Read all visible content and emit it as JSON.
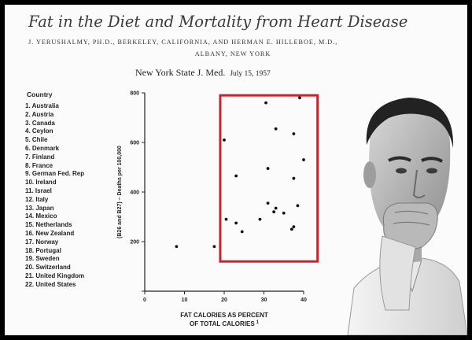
{
  "header": {
    "title": "Fat in the Diet and Mortality from Heart Disease",
    "authors": "J. YERUSHALMY, PH.D., BERKELEY, CALIFORNIA, AND HERMAN E. HILLEBOE, M.D.,",
    "location": "ALBANY, NEW YORK",
    "journal": "New York State J. Med.",
    "date": "July 15, 1957"
  },
  "countries": {
    "heading": "Country",
    "items": [
      "1. Australia",
      "2. Austria",
      "3. Canada",
      "4. Ceylon",
      "5. Chile",
      "6. Denmark",
      "7. Finland",
      "8. France",
      "9. German Fed. Rep",
      "10. Ireland",
      "11. Israel",
      "12. Italy",
      "13. Japan",
      "14. Mexico",
      "15. Netherlands",
      "16. New Zealand",
      "17. Norway",
      "18. Portugal",
      "19. Sweden",
      "20. Switzerland",
      "21. United Kingdom",
      "22. United States"
    ]
  },
  "chart_data": {
    "type": "scatter",
    "xlabel": "FAT CALORIES AS PERCENT",
    "xlabel_2": "OF TOTAL CALORIES",
    "xlabel_superscript": "1",
    "ylabel": "(B26 and B27) – Deaths per 100,000",
    "xlim": [
      0,
      40
    ],
    "ylim": [
      0,
      800
    ],
    "xticks": [
      0,
      10,
      20,
      30,
      40
    ],
    "yticks": [
      0,
      200,
      400,
      600,
      800
    ],
    "grid": false,
    "highlight_box": {
      "x_range": [
        19,
        43.5
      ],
      "y_range": [
        120,
        790
      ],
      "color": "#c1272d"
    },
    "points": [
      {
        "x": 8,
        "y": 180
      },
      {
        "x": 17.5,
        "y": 180
      },
      {
        "x": 20,
        "y": 610
      },
      {
        "x": 20.5,
        "y": 290
      },
      {
        "x": 23,
        "y": 465
      },
      {
        "x": 23,
        "y": 275
      },
      {
        "x": 24.5,
        "y": 240
      },
      {
        "x": 29,
        "y": 290
      },
      {
        "x": 30.5,
        "y": 760
      },
      {
        "x": 31,
        "y": 495
      },
      {
        "x": 31,
        "y": 355
      },
      {
        "x": 32.5,
        "y": 320
      },
      {
        "x": 33,
        "y": 655
      },
      {
        "x": 33,
        "y": 335
      },
      {
        "x": 35,
        "y": 315
      },
      {
        "x": 37,
        "y": 250
      },
      {
        "x": 37.5,
        "y": 260
      },
      {
        "x": 37.5,
        "y": 455
      },
      {
        "x": 37.5,
        "y": 635
      },
      {
        "x": 38.5,
        "y": 345
      },
      {
        "x": 39,
        "y": 780
      },
      {
        "x": 40,
        "y": 530
      }
    ]
  },
  "photo": {
    "icon": "man-portrait-photo"
  }
}
